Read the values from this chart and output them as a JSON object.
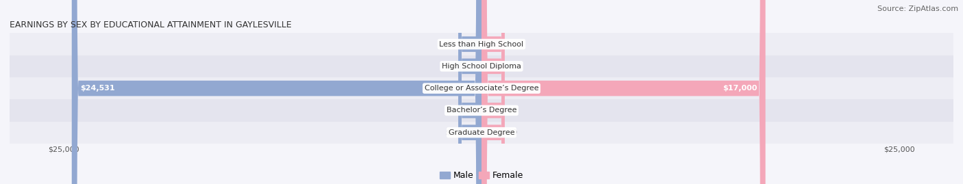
{
  "title": "EARNINGS BY SEX BY EDUCATIONAL ATTAINMENT IN GAYLESVILLE",
  "source": "Source: ZipAtlas.com",
  "categories": [
    "Less than High School",
    "High School Diploma",
    "College or Associate’s Degree",
    "Bachelor’s Degree",
    "Graduate Degree"
  ],
  "male_values": [
    0,
    0,
    24531,
    0,
    0
  ],
  "female_values": [
    0,
    0,
    17000,
    0,
    0
  ],
  "male_color": "#92a8d1",
  "female_color": "#f4a7b9",
  "row_light": "#ededf4",
  "row_dark": "#e4e4ee",
  "x_max": 25000,
  "title_fontsize": 9,
  "source_fontsize": 8,
  "value_fontsize": 8,
  "category_fontsize": 8,
  "legend_fontsize": 9,
  "tick_fontsize": 8,
  "background_color": "#f5f5fa"
}
